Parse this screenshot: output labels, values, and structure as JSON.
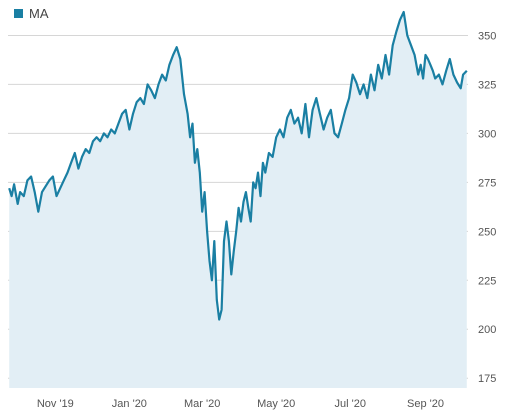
{
  "chart_data": {
    "type": "area",
    "legend": {
      "label": "MA",
      "position": "top-left"
    },
    "colors": {
      "line": "#1a7fa3",
      "fill": "#e2eef5",
      "grid": "#d6d6d6",
      "text": "#555555"
    },
    "x_ticks": [
      "Nov '19",
      "Jan '20",
      "Mar '20",
      "May '20",
      "Jul '20",
      "Sep '20"
    ],
    "y_ticks": [
      175,
      200,
      225,
      250,
      275,
      300,
      325,
      350
    ],
    "ylim": [
      170,
      363
    ],
    "xlim": [
      "2019-09-23",
      "2020-10-06"
    ],
    "y_axis_side": "right",
    "grid": "horizontal",
    "series": [
      {
        "x": [
          "2019-09-24",
          "2019-09-26",
          "2019-09-28",
          "2019-10-01",
          "2019-10-03",
          "2019-10-06",
          "2019-10-09",
          "2019-10-12",
          "2019-10-15",
          "2019-10-18",
          "2019-10-21",
          "2019-10-24",
          "2019-10-27",
          "2019-10-30",
          "2019-11-02",
          "2019-11-05",
          "2019-11-08",
          "2019-11-11",
          "2019-11-14",
          "2019-11-17",
          "2019-11-20",
          "2019-11-23",
          "2019-11-26",
          "2019-11-29",
          "2019-12-02",
          "2019-12-05",
          "2019-12-08",
          "2019-12-11",
          "2019-12-14",
          "2019-12-17",
          "2019-12-20",
          "2019-12-23",
          "2019-12-26",
          "2019-12-29",
          "2020-01-01",
          "2020-01-04",
          "2020-01-07",
          "2020-01-10",
          "2020-01-13",
          "2020-01-16",
          "2020-01-19",
          "2020-01-22",
          "2020-01-25",
          "2020-01-28",
          "2020-01-31",
          "2020-02-03",
          "2020-02-06",
          "2020-02-09",
          "2020-02-12",
          "2020-02-15",
          "2020-02-18",
          "2020-02-20",
          "2020-02-22",
          "2020-02-24",
          "2020-02-26",
          "2020-02-28",
          "2020-03-01",
          "2020-03-03",
          "2020-03-05",
          "2020-03-07",
          "2020-03-09",
          "2020-03-11",
          "2020-03-13",
          "2020-03-15",
          "2020-03-17",
          "2020-03-19",
          "2020-03-21",
          "2020-03-23",
          "2020-03-25",
          "2020-03-27",
          "2020-03-29",
          "2020-03-31",
          "2020-04-02",
          "2020-04-04",
          "2020-04-06",
          "2020-04-08",
          "2020-04-10",
          "2020-04-12",
          "2020-04-14",
          "2020-04-16",
          "2020-04-18",
          "2020-04-20",
          "2020-04-22",
          "2020-04-25",
          "2020-04-28",
          "2020-05-01",
          "2020-05-04",
          "2020-05-07",
          "2020-05-10",
          "2020-05-13",
          "2020-05-16",
          "2020-05-19",
          "2020-05-22",
          "2020-05-25",
          "2020-05-28",
          "2020-05-31",
          "2020-06-03",
          "2020-06-06",
          "2020-06-09",
          "2020-06-12",
          "2020-06-15",
          "2020-06-18",
          "2020-06-21",
          "2020-06-24",
          "2020-06-27",
          "2020-06-30",
          "2020-07-03",
          "2020-07-06",
          "2020-07-09",
          "2020-07-12",
          "2020-07-15",
          "2020-07-18",
          "2020-07-21",
          "2020-07-24",
          "2020-07-27",
          "2020-07-30",
          "2020-08-02",
          "2020-08-05",
          "2020-08-08",
          "2020-08-11",
          "2020-08-14",
          "2020-08-17",
          "2020-08-20",
          "2020-08-23",
          "2020-08-26",
          "2020-08-28",
          "2020-08-30",
          "2020-09-01",
          "2020-09-03",
          "2020-09-05",
          "2020-09-07",
          "2020-09-09",
          "2020-09-12",
          "2020-09-15",
          "2020-09-18",
          "2020-09-21",
          "2020-09-24",
          "2020-09-27",
          "2020-09-30",
          "2020-10-02",
          "2020-10-05"
        ],
        "values": [
          272,
          268,
          274,
          264,
          270,
          268,
          276,
          278,
          270,
          260,
          270,
          273,
          276,
          278,
          268,
          272,
          276,
          280,
          285,
          290,
          282,
          288,
          292,
          290,
          296,
          298,
          296,
          300,
          298,
          302,
          300,
          305,
          310,
          312,
          302,
          310,
          316,
          318,
          315,
          325,
          322,
          318,
          325,
          330,
          327,
          335,
          340,
          344,
          338,
          320,
          310,
          298,
          305,
          285,
          292,
          280,
          260,
          270,
          250,
          235,
          225,
          245,
          215,
          205,
          210,
          245,
          255,
          245,
          228,
          240,
          250,
          262,
          255,
          265,
          270,
          262,
          255,
          275,
          272,
          280,
          268,
          285,
          280,
          290,
          288,
          298,
          302,
          298,
          308,
          312,
          305,
          308,
          300,
          315,
          298,
          312,
          318,
          310,
          302,
          308,
          312,
          300,
          298,
          305,
          312,
          318,
          330,
          326,
          320,
          325,
          318,
          330,
          322,
          335,
          328,
          340,
          330,
          345,
          352,
          358,
          362,
          350,
          345,
          340,
          330,
          335,
          328,
          340,
          338,
          335,
          332,
          328,
          330,
          325,
          332,
          338,
          330,
          326,
          323,
          330,
          332
        ]
      }
    ]
  }
}
